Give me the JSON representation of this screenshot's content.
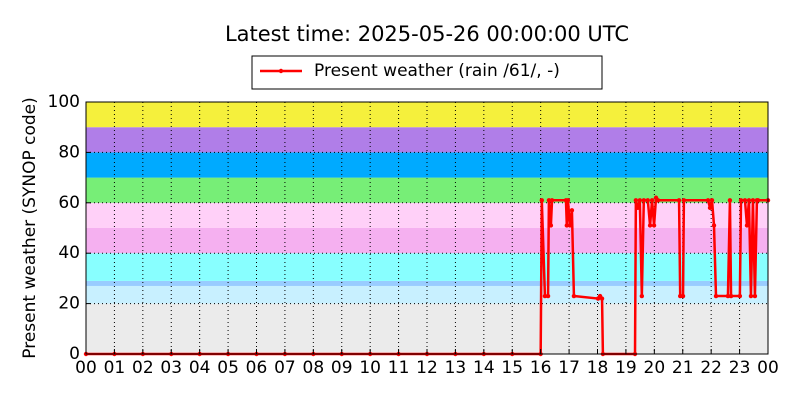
{
  "chart_data": {
    "type": "line",
    "title": "Latest time: 2025-05-26 00:00:00 UTC",
    "ylabel": "Present weather (SYNOP code)",
    "xlim": [
      0,
      24
    ],
    "xticks": [
      {
        "value": 0,
        "label": "00"
      },
      {
        "value": 1,
        "label": "01"
      },
      {
        "value": 2,
        "label": "02"
      },
      {
        "value": 3,
        "label": "03"
      },
      {
        "value": 4,
        "label": "04"
      },
      {
        "value": 5,
        "label": "05"
      },
      {
        "value": 6,
        "label": "06"
      },
      {
        "value": 7,
        "label": "07"
      },
      {
        "value": 8,
        "label": "08"
      },
      {
        "value": 9,
        "label": "09"
      },
      {
        "value": 10,
        "label": "10"
      },
      {
        "value": 11,
        "label": "11"
      },
      {
        "value": 12,
        "label": "12"
      },
      {
        "value": 13,
        "label": "13"
      },
      {
        "value": 14,
        "label": "14"
      },
      {
        "value": 15,
        "label": "15"
      },
      {
        "value": 16,
        "label": "16"
      },
      {
        "value": 17,
        "label": "17"
      },
      {
        "value": 18,
        "label": "18"
      },
      {
        "value": 19,
        "label": "19"
      },
      {
        "value": 20,
        "label": "20"
      },
      {
        "value": 21,
        "label": "21"
      },
      {
        "value": 22,
        "label": "22"
      },
      {
        "value": 23,
        "label": "23"
      },
      {
        "value": 24,
        "label": "00"
      }
    ],
    "ylim": [
      0,
      100
    ],
    "yticks": [
      0,
      20,
      40,
      60,
      80,
      100
    ],
    "grid": true,
    "legend": "top",
    "bands": [
      {
        "from": 0,
        "to": 20,
        "color": "#ebebeb"
      },
      {
        "from": 20,
        "to": 27,
        "color": "#c8f0ff"
      },
      {
        "from": 27,
        "to": 29,
        "color": "#99ccff"
      },
      {
        "from": 29,
        "to": 40,
        "color": "#88ffff"
      },
      {
        "from": 40,
        "to": 50,
        "color": "#f5b0f0"
      },
      {
        "from": 50,
        "to": 60,
        "color": "#ffd0f8"
      },
      {
        "from": 60,
        "to": 70,
        "color": "#77ee77"
      },
      {
        "from": 70,
        "to": 80,
        "color": "#00aaff"
      },
      {
        "from": 80,
        "to": 90,
        "color": "#b07ee8"
      },
      {
        "from": 90,
        "to": 100,
        "color": "#f5f03c"
      }
    ],
    "series": [
      {
        "name": "Present weather (rain /61/, -)",
        "color": "#ff0000",
        "x": [
          0,
          1,
          2,
          3,
          4,
          5,
          6,
          7,
          8,
          9,
          10,
          11,
          12,
          13,
          14,
          15,
          16,
          16.04,
          16.15,
          16.26,
          16.29,
          16.36,
          16.4,
          16.89,
          16.92,
          16.96,
          17.03,
          17.1,
          17.17,
          18.02,
          18.09,
          18.16,
          18.19,
          19.32,
          19.35,
          19.42,
          19.49,
          19.56,
          19.63,
          19.77,
          19.85,
          19.92,
          19.99,
          20.06,
          20.13,
          20.87,
          20.91,
          21.01,
          21.04,
          21.89,
          21.96,
          22.03,
          22.1,
          22.17,
          22.59,
          22.66,
          22.7,
          23.01,
          23.05,
          23.19,
          23.26,
          23.33,
          23.4,
          23.47,
          23.54,
          23.61,
          23.65,
          24
        ],
        "values": [
          0,
          0,
          0,
          0,
          0,
          0,
          0,
          0,
          0,
          0,
          0,
          0,
          0,
          0,
          0,
          0,
          0,
          61,
          23,
          23,
          61,
          51,
          61,
          61,
          51,
          61,
          51,
          57,
          23,
          22,
          23,
          22,
          0,
          0,
          61,
          58,
          61,
          23,
          61,
          61,
          51,
          61,
          51,
          62,
          61,
          61,
          23,
          23,
          61,
          61,
          58,
          61,
          51,
          23,
          23,
          61,
          23,
          23,
          61,
          61,
          51,
          61,
          23,
          61,
          23,
          61,
          61,
          61
        ]
      }
    ]
  }
}
